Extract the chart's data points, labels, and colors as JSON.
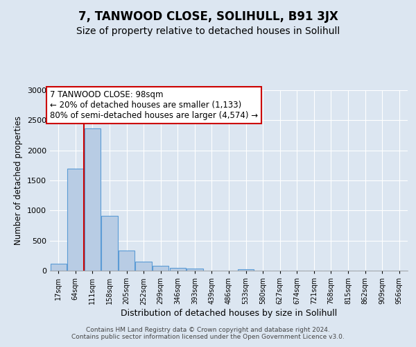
{
  "title": "7, TANWOOD CLOSE, SOLIHULL, B91 3JX",
  "subtitle": "Size of property relative to detached houses in Solihull",
  "xlabel": "Distribution of detached houses by size in Solihull",
  "ylabel": "Number of detached properties",
  "bar_labels": [
    "17sqm",
    "64sqm",
    "111sqm",
    "158sqm",
    "205sqm",
    "252sqm",
    "299sqm",
    "346sqm",
    "393sqm",
    "439sqm",
    "486sqm",
    "533sqm",
    "580sqm",
    "627sqm",
    "674sqm",
    "721sqm",
    "768sqm",
    "815sqm",
    "862sqm",
    "909sqm",
    "956sqm"
  ],
  "bar_values": [
    120,
    1700,
    2370,
    910,
    340,
    150,
    80,
    45,
    30,
    0,
    0,
    20,
    0,
    0,
    0,
    0,
    0,
    0,
    0,
    0,
    0
  ],
  "bar_color": "#b8cce4",
  "bar_edge_color": "#5b9bd5",
  "background_color": "#dce6f1",
  "plot_bg_color": "#dce6f1",
  "vline_color": "#cc0000",
  "annotation_title": "7 TANWOOD CLOSE: 98sqm",
  "annotation_line1": "← 20% of detached houses are smaller (1,133)",
  "annotation_line2": "80% of semi-detached houses are larger (4,574) →",
  "annotation_box_color": "#ffffff",
  "annotation_border_color": "#cc0000",
  "ylim": [
    0,
    3000
  ],
  "yticks": [
    0,
    500,
    1000,
    1500,
    2000,
    2500,
    3000
  ],
  "footer1": "Contains HM Land Registry data © Crown copyright and database right 2024.",
  "footer2": "Contains public sector information licensed under the Open Government Licence v3.0.",
  "title_fontsize": 12,
  "subtitle_fontsize": 10
}
